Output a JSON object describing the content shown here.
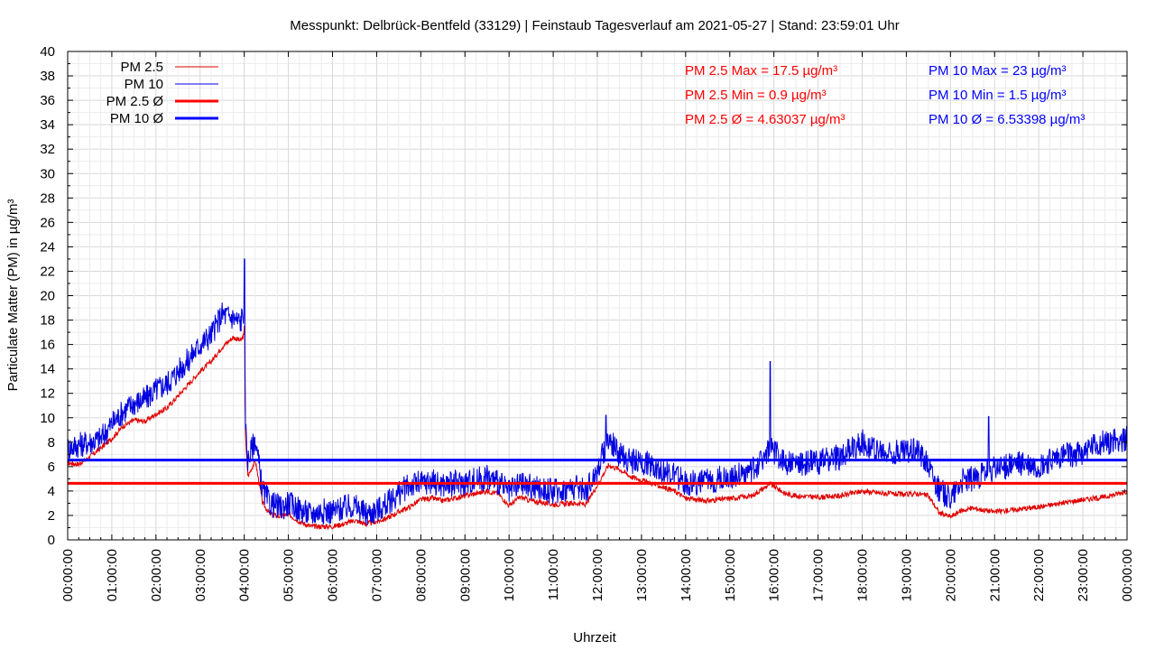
{
  "chart_data": {
    "type": "line",
    "title": "Messpunkt: Delbrück-Bentfeld (33129) | Feinstaub Tagesverlauf am 2021-05-27 | Stand: 23:59:01 Uhr",
    "xlabel": "Uhrzeit",
    "ylabel": "Particulate Matter (PM) in µg/m³",
    "ylim": [
      0,
      40
    ],
    "xlim": [
      "00:00:00",
      "24:00:00"
    ],
    "grid": true,
    "legend_position": "top-left",
    "y_ticks": [
      "0",
      "2",
      "4",
      "6",
      "8",
      "10",
      "12",
      "14",
      "16",
      "18",
      "20",
      "22",
      "24",
      "26",
      "28",
      "30",
      "32",
      "34",
      "36",
      "38",
      "40"
    ],
    "x_ticks": [
      "00:00:00",
      "01:00:00",
      "02:00:00",
      "03:00:00",
      "04:00:00",
      "05:00:00",
      "06:00:00",
      "07:00:00",
      "08:00:00",
      "09:00:00",
      "10:00:00",
      "11:00:00",
      "12:00:00",
      "13:00:00",
      "14:00:00",
      "15:00:00",
      "16:00:00",
      "17:00:00",
      "18:00:00",
      "19:00:00",
      "20:00:00",
      "21:00:00",
      "22:00:00",
      "23:00:00",
      "00:00:00"
    ],
    "series": [
      {
        "name": "PM 2.5",
        "color": "#e00000",
        "x": [
          "00:00",
          "00:15",
          "00:30",
          "00:45",
          "01:00",
          "01:15",
          "01:30",
          "01:45",
          "02:00",
          "02:15",
          "02:30",
          "02:45",
          "03:00",
          "03:15",
          "03:30",
          "03:45",
          "03:55",
          "04:00",
          "04:02",
          "04:05",
          "04:15",
          "04:25",
          "04:35",
          "04:50",
          "05:00",
          "05:15",
          "05:30",
          "05:45",
          "06:00",
          "06:15",
          "06:30",
          "06:45",
          "07:00",
          "07:15",
          "07:30",
          "07:45",
          "08:00",
          "08:15",
          "08:30",
          "09:00",
          "09:30",
          "09:45",
          "10:00",
          "10:15",
          "10:30",
          "11:00",
          "11:30",
          "11:45",
          "12:00",
          "12:15",
          "12:30",
          "12:45",
          "13:00",
          "13:15",
          "13:30",
          "13:45",
          "14:00",
          "14:30",
          "15:00",
          "15:30",
          "15:55",
          "16:15",
          "16:30",
          "17:00",
          "17:30",
          "18:00",
          "18:30",
          "19:00",
          "19:15",
          "19:30",
          "19:45",
          "20:00",
          "20:15",
          "20:30",
          "21:00",
          "21:30",
          "22:00",
          "22:30",
          "23:00",
          "23:30",
          "24:00"
        ],
        "values": [
          6.3,
          6.2,
          6.8,
          7.5,
          8.3,
          9.3,
          9.8,
          9.7,
          10.3,
          10.8,
          11.8,
          12.8,
          13.8,
          14.6,
          15.8,
          16.6,
          16.3,
          16.8,
          8.0,
          5.2,
          6.5,
          3.0,
          2.1,
          1.9,
          2.1,
          1.5,
          1.1,
          1.1,
          1.1,
          1.3,
          1.6,
          1.3,
          1.5,
          1.8,
          2.3,
          2.7,
          3.3,
          3.4,
          3.2,
          3.6,
          4.0,
          3.8,
          2.8,
          3.5,
          3.2,
          2.9,
          3.0,
          2.9,
          4.5,
          6.1,
          5.8,
          5.2,
          4.9,
          4.6,
          4.3,
          4.0,
          3.4,
          3.2,
          3.4,
          3.6,
          4.6,
          3.8,
          3.6,
          3.5,
          3.6,
          4.0,
          3.8,
          3.7,
          3.8,
          3.6,
          2.2,
          1.9,
          2.4,
          2.6,
          2.3,
          2.5,
          2.7,
          3.0,
          3.3,
          3.5,
          4.0
        ]
      },
      {
        "name": "PM 10",
        "color": "#0000e0",
        "x": [
          "00:00",
          "00:15",
          "00:30",
          "00:45",
          "01:00",
          "01:15",
          "01:30",
          "01:45",
          "02:00",
          "02:15",
          "02:30",
          "02:45",
          "03:00",
          "03:15",
          "03:30",
          "03:45",
          "03:55",
          "04:00",
          "04:02",
          "04:05",
          "04:15",
          "04:25",
          "04:35",
          "04:50",
          "05:00",
          "05:15",
          "05:30",
          "05:45",
          "06:00",
          "06:15",
          "06:30",
          "06:45",
          "07:00",
          "07:15",
          "07:30",
          "07:45",
          "08:00",
          "08:15",
          "08:30",
          "09:00",
          "09:30",
          "09:45",
          "10:00",
          "10:15",
          "10:30",
          "11:00",
          "11:30",
          "11:45",
          "12:00",
          "12:15",
          "12:30",
          "12:45",
          "13:00",
          "13:15",
          "13:30",
          "13:45",
          "14:00",
          "14:30",
          "15:00",
          "15:30",
          "15:55",
          "16:15",
          "16:30",
          "17:00",
          "17:30",
          "18:00",
          "18:30",
          "19:00",
          "19:15",
          "19:30",
          "19:45",
          "20:00",
          "20:15",
          "20:30",
          "21:00",
          "21:30",
          "22:00",
          "22:30",
          "23:00",
          "23:30",
          "24:00"
        ],
        "values": [
          7.5,
          7.8,
          8.0,
          8.3,
          9.5,
          10.5,
          11.2,
          11.5,
          12.3,
          12.8,
          13.8,
          14.8,
          16.0,
          16.8,
          18.5,
          18.2,
          17.8,
          19.0,
          9.0,
          6.5,
          8.3,
          4.0,
          3.0,
          2.6,
          3.0,
          2.5,
          2.1,
          2.4,
          2.3,
          2.6,
          2.8,
          2.1,
          2.4,
          3.0,
          3.8,
          4.5,
          4.6,
          4.8,
          4.5,
          4.7,
          5.1,
          4.8,
          3.8,
          4.6,
          4.3,
          4.0,
          4.3,
          4.1,
          5.7,
          8.3,
          7.0,
          6.5,
          6.3,
          6.2,
          5.6,
          5.3,
          4.6,
          4.8,
          5.2,
          5.6,
          7.5,
          6.4,
          6.2,
          6.4,
          6.8,
          8.0,
          7.0,
          7.3,
          7.5,
          6.2,
          4.0,
          3.5,
          4.8,
          5.0,
          5.8,
          6.2,
          6.0,
          6.8,
          7.2,
          8.0,
          8.3
        ]
      },
      {
        "name": "PM 2.5 Ø",
        "color": "#ff0000",
        "x": [
          "00:00",
          "24:00"
        ],
        "values": [
          4.63037,
          4.63037
        ]
      },
      {
        "name": "PM 10 Ø",
        "color": "#0000ff",
        "x": [
          "00:00",
          "24:00"
        ],
        "values": [
          6.53398,
          6.53398
        ]
      }
    ],
    "annotations": [
      {
        "text": "PM 2.5 Max = 17.5 µg/m³",
        "color": "#ff0000"
      },
      {
        "text": "PM 2.5 Min = 0.9 µg/m³",
        "color": "#ff0000"
      },
      {
        "text": "PM 2.5 Ø = 4.63037 µg/m³",
        "color": "#ff0000"
      },
      {
        "text": "PM 10 Max = 23 µg/m³",
        "color": "#0000ff"
      },
      {
        "text": "PM 10 Min = 1.5 µg/m³",
        "color": "#0000ff"
      },
      {
        "text": "PM 10 Ø = 6.53398 µg/m³",
        "color": "#0000ff"
      }
    ],
    "peaks": [
      {
        "series": "PM 10",
        "x": "04:00",
        "value": 23
      },
      {
        "series": "PM 2.5",
        "x": "04:00",
        "value": 17.5
      },
      {
        "series": "PM 10",
        "x": "15:55",
        "value": 14.6
      },
      {
        "series": "PM 10",
        "x": "12:12",
        "value": 10.2
      },
      {
        "series": "PM 10",
        "x": "20:52",
        "value": 10.1
      }
    ]
  }
}
